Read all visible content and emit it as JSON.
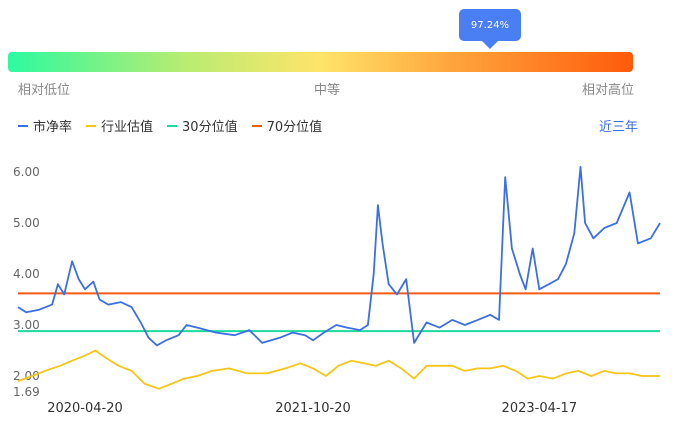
{
  "tooltip": {
    "percentile": "97.24%"
  },
  "position_bar": {
    "low_label": "相对低位",
    "mid_label": "中等",
    "high_label": "相对高位"
  },
  "legend": [
    {
      "label": "市净率",
      "color": "#3b6fe8"
    },
    {
      "label": "行业估值",
      "color": "#f5c518"
    },
    {
      "label": "30分位值",
      "color": "#1fd99a"
    },
    {
      "label": "70分位值",
      "color": "#f05a14"
    }
  ],
  "range_selector": "近三年",
  "chart_data": {
    "type": "line",
    "x_ticks": [
      "2020-04-20",
      "2021-10-20",
      "2023-04-17"
    ],
    "y_ticks": [
      "6.00",
      "5.00",
      "4.00",
      "3.00",
      "2.00",
      "1.69"
    ],
    "ylim": [
      1.69,
      6.2
    ],
    "start": "2019-11-11",
    "end": "2024-02-01",
    "series": [
      {
        "name": "市净率",
        "color": "#3b6fe8",
        "points": [
          [
            "2019-11-11",
            3.35
          ],
          [
            "2019-12-01",
            3.25
          ],
          [
            "2020-01-01",
            3.3
          ],
          [
            "2020-02-01",
            3.4
          ],
          [
            "2020-02-15",
            3.8
          ],
          [
            "2020-03-01",
            3.6
          ],
          [
            "2020-03-20",
            4.25
          ],
          [
            "2020-04-05",
            3.9
          ],
          [
            "2020-04-20",
            3.7
          ],
          [
            "2020-05-10",
            3.85
          ],
          [
            "2020-05-25",
            3.5
          ],
          [
            "2020-06-15",
            3.4
          ],
          [
            "2020-07-15",
            3.45
          ],
          [
            "2020-08-10",
            3.35
          ],
          [
            "2020-09-01",
            3.05
          ],
          [
            "2020-09-20",
            2.75
          ],
          [
            "2020-10-10",
            2.6
          ],
          [
            "2020-11-01",
            2.7
          ],
          [
            "2020-12-01",
            2.8
          ],
          [
            "2020-12-20",
            3.0
          ],
          [
            "2021-01-15",
            2.95
          ],
          [
            "2021-03-01",
            2.85
          ],
          [
            "2021-04-15",
            2.8
          ],
          [
            "2021-05-20",
            2.9
          ],
          [
            "2021-06-20",
            2.65
          ],
          [
            "2021-08-01",
            2.75
          ],
          [
            "2021-09-01",
            2.85
          ],
          [
            "2021-10-01",
            2.8
          ],
          [
            "2021-10-20",
            2.7
          ],
          [
            "2021-11-15",
            2.85
          ],
          [
            "2021-12-15",
            3.0
          ],
          [
            "2022-01-10",
            2.95
          ],
          [
            "2022-02-10",
            2.9
          ],
          [
            "2022-03-01",
            3.0
          ],
          [
            "2022-03-15",
            4.0
          ],
          [
            "2022-03-25",
            5.35
          ],
          [
            "2022-04-05",
            4.6
          ],
          [
            "2022-04-20",
            3.8
          ],
          [
            "2022-05-10",
            3.6
          ],
          [
            "2022-06-01",
            3.9
          ],
          [
            "2022-06-20",
            2.65
          ],
          [
            "2022-07-20",
            3.05
          ],
          [
            "2022-08-20",
            2.95
          ],
          [
            "2022-09-20",
            3.1
          ],
          [
            "2022-10-20",
            3.0
          ],
          [
            "2022-11-20",
            3.1
          ],
          [
            "2022-12-20",
            3.2
          ],
          [
            "2023-01-10",
            3.1
          ],
          [
            "2023-01-25",
            5.9
          ],
          [
            "2023-02-10",
            4.5
          ],
          [
            "2023-03-01",
            4.0
          ],
          [
            "2023-03-15",
            3.7
          ],
          [
            "2023-04-01",
            4.5
          ],
          [
            "2023-04-17",
            3.7
          ],
          [
            "2023-05-10",
            3.8
          ],
          [
            "2023-06-01",
            3.9
          ],
          [
            "2023-06-20",
            4.2
          ],
          [
            "2023-07-10",
            4.8
          ],
          [
            "2023-07-25",
            6.1
          ],
          [
            "2023-08-05",
            5.0
          ],
          [
            "2023-08-25",
            4.7
          ],
          [
            "2023-09-20",
            4.9
          ],
          [
            "2023-10-20",
            5.0
          ],
          [
            "2023-11-20",
            5.6
          ],
          [
            "2023-12-10",
            4.6
          ],
          [
            "2024-01-10",
            4.7
          ],
          [
            "2024-02-01",
            5.0
          ]
        ]
      },
      {
        "name": "行业估值",
        "color": "#f5c518",
        "points": [
          [
            "2019-11-11",
            1.9
          ],
          [
            "2019-12-15",
            2.0
          ],
          [
            "2020-01-15",
            2.1
          ],
          [
            "2020-02-20",
            2.2
          ],
          [
            "2020-03-20",
            2.3
          ],
          [
            "2020-04-20",
            2.4
          ],
          [
            "2020-05-15",
            2.5
          ],
          [
            "2020-06-10",
            2.35
          ],
          [
            "2020-07-10",
            2.2
          ],
          [
            "2020-08-10",
            2.1
          ],
          [
            "2020-09-10",
            1.85
          ],
          [
            "2020-10-15",
            1.75
          ],
          [
            "2020-11-15",
            1.85
          ],
          [
            "2020-12-15",
            1.95
          ],
          [
            "2021-01-15",
            2.0
          ],
          [
            "2021-02-20",
            2.1
          ],
          [
            "2021-04-01",
            2.15
          ],
          [
            "2021-05-15",
            2.05
          ],
          [
            "2021-07-01",
            2.05
          ],
          [
            "2021-08-15",
            2.15
          ],
          [
            "2021-09-20",
            2.25
          ],
          [
            "2021-10-20",
            2.15
          ],
          [
            "2021-11-20",
            2.0
          ],
          [
            "2021-12-20",
            2.2
          ],
          [
            "2022-01-20",
            2.3
          ],
          [
            "2022-02-20",
            2.25
          ],
          [
            "2022-03-20",
            2.2
          ],
          [
            "2022-04-20",
            2.3
          ],
          [
            "2022-05-20",
            2.15
          ],
          [
            "2022-06-20",
            1.95
          ],
          [
            "2022-07-20",
            2.2
          ],
          [
            "2022-08-20",
            2.2
          ],
          [
            "2022-09-20",
            2.2
          ],
          [
            "2022-10-20",
            2.1
          ],
          [
            "2022-11-20",
            2.15
          ],
          [
            "2022-12-20",
            2.15
          ],
          [
            "2023-01-20",
            2.2
          ],
          [
            "2023-02-20",
            2.1
          ],
          [
            "2023-03-20",
            1.95
          ],
          [
            "2023-04-17",
            2.0
          ],
          [
            "2023-05-20",
            1.95
          ],
          [
            "2023-06-20",
            2.05
          ],
          [
            "2023-07-20",
            2.1
          ],
          [
            "2023-08-20",
            2.0
          ],
          [
            "2023-09-20",
            2.1
          ],
          [
            "2023-10-20",
            2.05
          ],
          [
            "2023-11-20",
            2.05
          ],
          [
            "2023-12-20",
            2.0
          ],
          [
            "2024-01-20",
            2.0
          ],
          [
            "2024-02-01",
            2.0
          ]
        ]
      }
    ],
    "reference_lines": [
      {
        "name": "70分位值",
        "value": 3.62,
        "color": "#f05a14"
      },
      {
        "name": "30分位值",
        "value": 2.88,
        "color": "#1fd99a"
      }
    ],
    "grid": false
  }
}
